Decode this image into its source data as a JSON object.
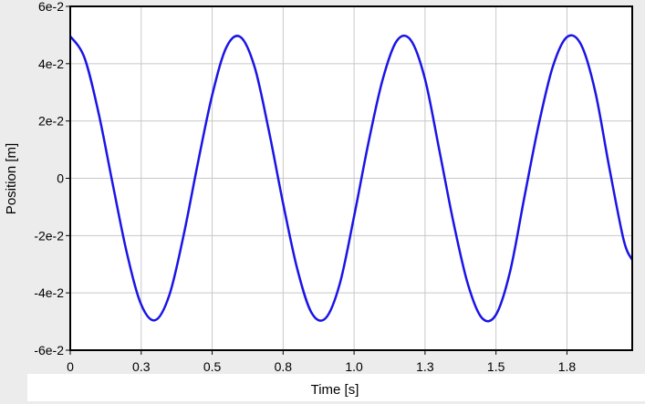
{
  "chart_data": {
    "type": "line",
    "title": "",
    "xlabel": "Time [s]",
    "ylabel": "Position [m]",
    "xlim": [
      0,
      1.98
    ],
    "ylim": [
      -0.06,
      0.06
    ],
    "x_ticks": [
      {
        "value": 0,
        "label": "0"
      },
      {
        "value": 0.25,
        "label": "0.3"
      },
      {
        "value": 0.5,
        "label": "0.5"
      },
      {
        "value": 0.75,
        "label": "0.8"
      },
      {
        "value": 1.0,
        "label": "1.0"
      },
      {
        "value": 1.25,
        "label": "1.3"
      },
      {
        "value": 1.5,
        "label": "1.5"
      },
      {
        "value": 1.75,
        "label": "1.8"
      }
    ],
    "y_ticks": [
      {
        "value": 0.06,
        "label": "6e-2"
      },
      {
        "value": 0.04,
        "label": "4e-2"
      },
      {
        "value": 0.02,
        "label": "2e-2"
      },
      {
        "value": 0,
        "label": "0"
      },
      {
        "value": -0.02,
        "label": "-2e-2"
      },
      {
        "value": -0.04,
        "label": "-4e-2"
      },
      {
        "value": -0.06,
        "label": "-6e-2"
      }
    ],
    "grid": true,
    "series": [
      {
        "color": "#1a14e6",
        "x": [
          0,
          0.05,
          0.1,
          0.15,
          0.2,
          0.25,
          0.3,
          0.35,
          0.4,
          0.45,
          0.5,
          0.55,
          0.6,
          0.65,
          0.7,
          0.75,
          0.8,
          0.85,
          0.9,
          0.95,
          1.0,
          1.05,
          1.1,
          1.15,
          1.2,
          1.25,
          1.3,
          1.35,
          1.4,
          1.45,
          1.5,
          1.55,
          1.6,
          1.65,
          1.7,
          1.75,
          1.8,
          1.85,
          1.9,
          1.95,
          1.98
        ],
        "y": [
          0.0496,
          0.0421,
          0.0227,
          -0.0022,
          -0.0263,
          -0.0441,
          -0.0495,
          -0.0405,
          -0.0196,
          0.0055,
          0.029,
          0.0457,
          0.0493,
          0.0387,
          0.0165,
          -0.0088,
          -0.0317,
          -0.0469,
          -0.0488,
          -0.0367,
          -0.0133,
          0.0121,
          0.0342,
          0.0479,
          0.0482,
          0.0346,
          0.01,
          -0.0153,
          -0.0366,
          -0.0487,
          -0.0476,
          -0.0324,
          -0.0066,
          0.0185,
          0.0389,
          0.0493,
          0.0466,
          0.0301,
          0.0033,
          -0.0216,
          -0.0285
        ]
      }
    ]
  }
}
